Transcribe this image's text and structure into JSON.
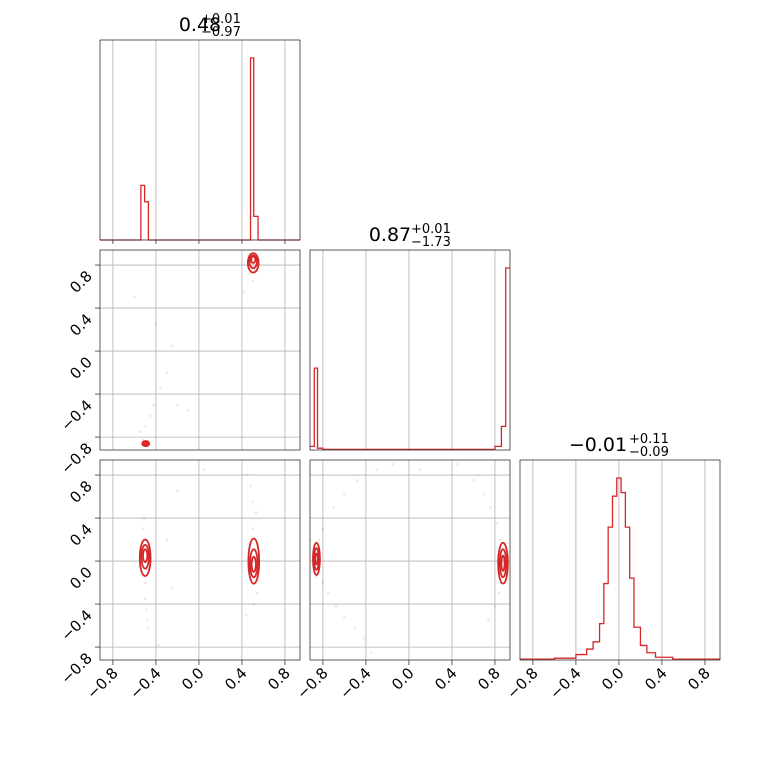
{
  "colors": {
    "accent": "#d62728",
    "grid": "#b0b0b0",
    "frame": "#333333"
  },
  "chart_data": {
    "type": "corner",
    "parameters": [
      "p0",
      "p1",
      "p2"
    ],
    "range": [
      -0.92,
      0.94
    ],
    "ticks": [
      -0.8,
      -0.4,
      0.0,
      0.4,
      0.8
    ],
    "tick_labels": [
      "−0.8",
      "−0.4",
      "0.0",
      "0.4",
      "0.8"
    ],
    "grid": true,
    "titles": [
      {
        "main": "0.48",
        "sup": "+0.01",
        "sub": "−0.97"
      },
      {
        "main": "0.87",
        "sup": "+0.01",
        "sub": "−1.73"
      },
      {
        "main": "−0.01",
        "sup": "+0.11",
        "sub": "−0.09"
      }
    ],
    "histograms": [
      {
        "param": "p0",
        "steps": [
          {
            "x0": -0.92,
            "x1": -0.54,
            "v": 0.0
          },
          {
            "x0": -0.54,
            "x1": -0.505,
            "v": 0.3
          },
          {
            "x0": -0.505,
            "x1": -0.47,
            "v": 0.21
          },
          {
            "x0": -0.47,
            "x1": 0.48,
            "v": 0.0
          },
          {
            "x0": 0.48,
            "x1": 0.51,
            "v": 1.0
          },
          {
            "x0": 0.51,
            "x1": 0.55,
            "v": 0.13
          },
          {
            "x0": 0.55,
            "x1": 0.94,
            "v": 0.0
          }
        ]
      },
      {
        "param": "p1",
        "steps": [
          {
            "x0": -0.92,
            "x1": -0.88,
            "v": 0.02
          },
          {
            "x0": -0.88,
            "x1": -0.85,
            "v": 0.45
          },
          {
            "x0": -0.85,
            "x1": -0.8,
            "v": 0.01
          },
          {
            "x0": -0.8,
            "x1": 0.8,
            "v": 0.003
          },
          {
            "x0": 0.8,
            "x1": 0.86,
            "v": 0.02
          },
          {
            "x0": 0.86,
            "x1": 0.9,
            "v": 0.13
          },
          {
            "x0": 0.9,
            "x1": 0.94,
            "v": 1.0
          }
        ]
      },
      {
        "param": "p2",
        "steps": [
          {
            "x0": -0.92,
            "x1": -0.6,
            "v": 0.005
          },
          {
            "x0": -0.6,
            "x1": -0.4,
            "v": 0.01
          },
          {
            "x0": -0.4,
            "x1": -0.3,
            "v": 0.03
          },
          {
            "x0": -0.3,
            "x1": -0.24,
            "v": 0.06
          },
          {
            "x0": -0.24,
            "x1": -0.18,
            "v": 0.1
          },
          {
            "x0": -0.18,
            "x1": -0.14,
            "v": 0.2
          },
          {
            "x0": -0.14,
            "x1": -0.1,
            "v": 0.42
          },
          {
            "x0": -0.1,
            "x1": -0.06,
            "v": 0.73
          },
          {
            "x0": -0.06,
            "x1": -0.02,
            "v": 0.9
          },
          {
            "x0": -0.02,
            "x1": 0.02,
            "v": 1.0
          },
          {
            "x0": 0.02,
            "x1": 0.06,
            "v": 0.92
          },
          {
            "x0": 0.06,
            "x1": 0.1,
            "v": 0.73
          },
          {
            "x0": 0.1,
            "x1": 0.14,
            "v": 0.45
          },
          {
            "x0": 0.14,
            "x1": 0.2,
            "v": 0.18
          },
          {
            "x0": 0.2,
            "x1": 0.26,
            "v": 0.08
          },
          {
            "x0": 0.26,
            "x1": 0.34,
            "v": 0.04
          },
          {
            "x0": 0.34,
            "x1": 0.5,
            "v": 0.015
          },
          {
            "x0": 0.5,
            "x1": 0.94,
            "v": 0.005
          }
        ]
      }
    ],
    "scatter": [
      {
        "x_param": "p0",
        "y_param": "p1",
        "points": [
          [
            0.49,
            0.85
          ],
          [
            0.5,
            0.82
          ],
          [
            0.52,
            0.8
          ],
          [
            0.53,
            0.86
          ],
          [
            0.51,
            0.88
          ],
          [
            0.48,
            0.84
          ],
          [
            0.54,
            0.83
          ],
          [
            0.5,
            0.78
          ],
          [
            0.46,
            0.9
          ],
          [
            0.52,
            0.75
          ],
          [
            0.55,
            0.79
          ],
          [
            0.47,
            0.72
          ],
          [
            0.5,
            0.65
          ],
          [
            -0.49,
            -0.86
          ],
          [
            -0.47,
            -0.84
          ],
          [
            -0.5,
            -0.85
          ],
          [
            -0.46,
            -0.87
          ],
          [
            -0.52,
            -0.83
          ],
          [
            -0.55,
            -0.75
          ],
          [
            -0.5,
            -0.7
          ],
          [
            -0.45,
            -0.6
          ],
          [
            -0.42,
            -0.5
          ],
          [
            -0.36,
            -0.35
          ],
          [
            -0.3,
            -0.2
          ],
          [
            -0.25,
            0.05
          ],
          [
            -0.4,
            0.25
          ],
          [
            -0.6,
            0.5
          ],
          [
            -0.2,
            -0.5
          ],
          [
            -0.1,
            -0.55
          ],
          [
            0.42,
            0.55
          ]
        ]
      },
      {
        "x_param": "p0",
        "y_param": "p2",
        "points": [
          [
            -0.5,
            0.0
          ],
          [
            -0.52,
            0.1
          ],
          [
            -0.48,
            -0.08
          ],
          [
            -0.51,
            0.15
          ],
          [
            -0.49,
            0.2
          ],
          [
            -0.5,
            -0.2
          ],
          [
            -0.5,
            -0.35
          ],
          [
            -0.49,
            -0.45
          ],
          [
            -0.48,
            -0.55
          ],
          [
            -0.47,
            -0.62
          ],
          [
            -0.52,
            0.3
          ],
          [
            -0.51,
            0.4
          ],
          [
            -0.55,
            -0.05
          ],
          [
            -0.46,
            0.05
          ],
          [
            0.5,
            0.0
          ],
          [
            0.51,
            0.1
          ],
          [
            0.49,
            -0.1
          ],
          [
            0.52,
            0.2
          ],
          [
            0.5,
            0.3
          ],
          [
            0.53,
            0.45
          ],
          [
            0.5,
            0.55
          ],
          [
            0.48,
            0.7
          ],
          [
            0.52,
            -0.2
          ],
          [
            0.54,
            -0.3
          ],
          [
            0.51,
            -0.4
          ],
          [
            0.55,
            -0.15
          ],
          [
            0.47,
            0.15
          ],
          [
            0.45,
            0.8
          ],
          [
            0.44,
            -0.5
          ],
          [
            -0.2,
            0.65
          ],
          [
            -0.3,
            0.2
          ],
          [
            -0.25,
            -0.25
          ],
          [
            -0.38,
            -0.78
          ],
          [
            0.05,
            0.85
          ]
        ]
      },
      {
        "x_param": "p1",
        "y_param": "p2",
        "points": [
          [
            -0.86,
            0.0
          ],
          [
            -0.85,
            0.1
          ],
          [
            -0.87,
            -0.08
          ],
          [
            -0.84,
            0.2
          ],
          [
            -0.86,
            -0.15
          ],
          [
            -0.8,
            -0.2
          ],
          [
            -0.75,
            -0.3
          ],
          [
            -0.68,
            -0.42
          ],
          [
            -0.6,
            -0.52
          ],
          [
            -0.5,
            -0.62
          ],
          [
            -0.42,
            -0.72
          ],
          [
            -0.35,
            -0.85
          ],
          [
            -0.8,
            0.3
          ],
          [
            -0.7,
            0.5
          ],
          [
            -0.6,
            0.62
          ],
          [
            -0.48,
            0.75
          ],
          [
            -0.3,
            0.85
          ],
          [
            -0.15,
            0.9
          ],
          [
            0.87,
            0.0
          ],
          [
            0.86,
            0.1
          ],
          [
            0.88,
            -0.1
          ],
          [
            0.85,
            0.2
          ],
          [
            0.82,
            0.35
          ],
          [
            0.76,
            0.5
          ],
          [
            0.7,
            0.62
          ],
          [
            0.6,
            0.75
          ],
          [
            0.86,
            -0.2
          ],
          [
            0.84,
            -0.3
          ],
          [
            0.8,
            -0.42
          ],
          [
            0.74,
            -0.55
          ],
          [
            0.9,
            0.05
          ],
          [
            0.45,
            0.9
          ],
          [
            -0.92,
            0.2
          ],
          [
            0.1,
            0.85
          ]
        ]
      }
    ],
    "contours": [
      {
        "x_param": "p0",
        "y_param": "p1",
        "ellipses": [
          {
            "cx": 0.505,
            "cy": 0.85,
            "rx": 0.02,
            "ry": 0.03
          },
          {
            "cx": 0.505,
            "cy": 0.83,
            "rx": 0.035,
            "ry": 0.06
          },
          {
            "cx": 0.505,
            "cy": 0.82,
            "rx": 0.05,
            "ry": 0.09
          },
          {
            "cx": -0.495,
            "cy": -0.86,
            "rx": 0.012,
            "ry": 0.012
          },
          {
            "cx": -0.495,
            "cy": -0.86,
            "rx": 0.022,
            "ry": 0.018
          },
          {
            "cx": -0.495,
            "cy": -0.86,
            "rx": 0.032,
            "ry": 0.024
          }
        ]
      },
      {
        "x_param": "p0",
        "y_param": "p2",
        "ellipses": [
          {
            "cx": -0.5,
            "cy": 0.05,
            "rx": 0.02,
            "ry": 0.06
          },
          {
            "cx": -0.5,
            "cy": 0.04,
            "rx": 0.035,
            "ry": 0.11
          },
          {
            "cx": -0.5,
            "cy": 0.03,
            "rx": 0.05,
            "ry": 0.17
          },
          {
            "cx": 0.51,
            "cy": -0.03,
            "rx": 0.02,
            "ry": 0.07
          },
          {
            "cx": 0.51,
            "cy": -0.02,
            "rx": 0.035,
            "ry": 0.13
          },
          {
            "cx": 0.51,
            "cy": 0.0,
            "rx": 0.05,
            "ry": 0.21
          }
        ]
      },
      {
        "x_param": "p1",
        "y_param": "p2",
        "ellipses": [
          {
            "cx": -0.86,
            "cy": 0.02,
            "rx": 0.012,
            "ry": 0.05
          },
          {
            "cx": -0.86,
            "cy": 0.02,
            "rx": 0.022,
            "ry": 0.1
          },
          {
            "cx": -0.86,
            "cy": 0.02,
            "rx": 0.032,
            "ry": 0.15
          },
          {
            "cx": 0.875,
            "cy": -0.02,
            "rx": 0.015,
            "ry": 0.07
          },
          {
            "cx": 0.875,
            "cy": -0.02,
            "rx": 0.03,
            "ry": 0.13
          },
          {
            "cx": 0.875,
            "cy": -0.02,
            "rx": 0.045,
            "ry": 0.19
          }
        ]
      }
    ]
  }
}
